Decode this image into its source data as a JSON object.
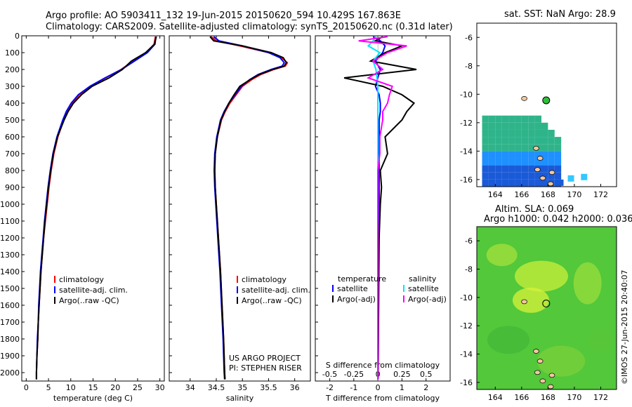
{
  "header": {
    "line1": "Argo profile: AO 5903411_132 19-Jun-2015 20150620_594 10.429S 167.863E",
    "line2": "Climatology: CARS2009. Satellite-adjusted climatology: synTS_20150620.nc (0.31d later)"
  },
  "credits": {
    "project": "US ARGO PROJECT",
    "pi": "PI: STEPHEN RISER",
    "watermark": "©IMOS 27-Jun-2015 20:40:07"
  },
  "colors": {
    "climatology": "#ff0000",
    "satellite": "#0000ff",
    "argo": "#000000",
    "sat_salinity": "#00e5ff",
    "argo_salinity": "#ff00ff"
  },
  "legend_profile": [
    "climatology",
    "satellite-adj. clim.",
    "Argo(..raw -QC)"
  ],
  "legend_diff": {
    "temp_title": "temperature",
    "sal_title": "salinity",
    "temp_items": [
      "satellite",
      "Argo(-adj)"
    ],
    "sal_items": [
      "satellite",
      "Argo(-adj)"
    ]
  },
  "chart_data": [
    {
      "type": "line",
      "id": "temperature",
      "xlabel": "temperature (deg C)",
      "ylim": [
        2050,
        0
      ],
      "xlim": [
        -1,
        31
      ],
      "xticks": [
        0,
        5,
        10,
        15,
        20,
        25,
        30
      ],
      "yticks": [
        0,
        100,
        200,
        300,
        400,
        500,
        600,
        700,
        800,
        900,
        1000,
        1100,
        1200,
        1300,
        1400,
        1500,
        1600,
        1700,
        1800,
        1900,
        2000
      ],
      "depth": [
        5,
        50,
        100,
        150,
        200,
        250,
        300,
        350,
        400,
        450,
        500,
        600,
        700,
        800,
        900,
        1000,
        1100,
        1200,
        1300,
        1400,
        1500,
        1600,
        1700,
        1800,
        1900,
        2000,
        2040
      ],
      "series": [
        {
          "name": "climatology",
          "color": "#ff0000",
          "values": [
            29,
            28.7,
            27,
            24,
            21.3,
            17.8,
            14.4,
            11.9,
            10.3,
            9.2,
            8.4,
            7.1,
            6.2,
            5.6,
            5.1,
            4.7,
            4.3,
            3.9,
            3.6,
            3.3,
            3.1,
            2.9,
            2.7,
            2.6,
            2.4,
            2.3,
            2.3
          ]
        },
        {
          "name": "satellite-adj. clim.",
          "color": "#0000ff",
          "values": [
            29.1,
            28.9,
            27.2,
            24.3,
            21.4,
            17.7,
            14.3,
            11.7,
            10.1,
            9.0,
            8.2,
            6.9,
            6.0,
            5.4,
            4.9,
            4.5,
            4.1,
            3.8,
            3.5,
            3.2,
            3.0,
            2.8,
            2.7,
            2.5,
            2.4,
            2.3,
            2.3
          ]
        },
        {
          "name": "Argo(..raw -QC)",
          "color": "#000000",
          "values": [
            29.2,
            28.8,
            26.8,
            23.6,
            21.6,
            18.6,
            14.8,
            12.4,
            10.6,
            9.4,
            8.5,
            7.0,
            6.1,
            5.5,
            5.0,
            4.6,
            4.2,
            3.9,
            3.6,
            3.3,
            3.1,
            2.9,
            2.7,
            2.6,
            2.4,
            2.3,
            2.3
          ]
        }
      ]
    },
    {
      "type": "line",
      "id": "salinity",
      "xlabel": "salinity",
      "ylim": [
        2050,
        0
      ],
      "xlim": [
        33.6,
        36.3
      ],
      "xticks": [
        34,
        34.5,
        35,
        35.5,
        36
      ],
      "depth": [
        5,
        30,
        60,
        100,
        130,
        160,
        180,
        200,
        230,
        260,
        300,
        350,
        400,
        450,
        500,
        600,
        700,
        800,
        900,
        1000,
        1200,
        1400,
        1600,
        1800,
        2000,
        2040
      ],
      "series": [
        {
          "name": "climatology",
          "color": "#ff0000",
          "values": [
            34.4,
            34.5,
            34.95,
            35.5,
            35.75,
            35.86,
            35.82,
            35.6,
            35.35,
            35.18,
            35.0,
            34.88,
            34.76,
            34.67,
            34.6,
            34.52,
            34.48,
            34.47,
            34.48,
            34.5,
            34.54,
            34.58,
            34.61,
            34.64,
            34.66,
            34.67
          ]
        },
        {
          "name": "satellite-adj. clim.",
          "color": "#0000ff",
          "values": [
            34.45,
            34.55,
            35.0,
            35.5,
            35.72,
            35.8,
            35.76,
            35.55,
            35.3,
            35.14,
            34.98,
            34.86,
            34.74,
            34.65,
            34.58,
            34.51,
            34.47,
            34.46,
            34.47,
            34.49,
            34.53,
            34.57,
            34.6,
            34.63,
            34.65,
            34.66
          ]
        },
        {
          "name": "Argo(..raw -QC)",
          "color": "#000000",
          "values": [
            34.38,
            34.45,
            35.0,
            35.55,
            35.78,
            35.84,
            35.8,
            35.58,
            35.32,
            35.15,
            34.95,
            34.84,
            34.74,
            34.66,
            34.59,
            34.52,
            34.48,
            34.47,
            34.48,
            34.5,
            34.54,
            34.58,
            34.61,
            34.64,
            34.66,
            34.66
          ]
        }
      ]
    },
    {
      "type": "line",
      "id": "difference",
      "xlabel": "T difference from climatology",
      "xlabel_top": "S difference from climatology",
      "ylim": [
        2050,
        0
      ],
      "xlim": [
        -2.6,
        3.0
      ],
      "xticks": [
        -2,
        -1,
        0,
        1,
        2
      ],
      "xticks_top": [
        -0.5,
        -0.25,
        0,
        0.25,
        0.5
      ],
      "depth": [
        5,
        30,
        60,
        100,
        150,
        200,
        250,
        300,
        350,
        400,
        450,
        500,
        600,
        700,
        800,
        900,
        1000,
        1200,
        1400,
        1600,
        1800,
        2000,
        2040
      ],
      "series": [
        {
          "name": "T satellite",
          "color": "#0000ff",
          "values": [
            -0.2,
            0.1,
            0.3,
            0.2,
            -0.1,
            0.1,
            0.0,
            -0.1,
            0.05,
            0.1,
            0.1,
            0.05,
            0.05,
            0.05,
            0.05,
            0.05,
            0.05,
            0.03,
            0.03,
            0.02,
            0.02,
            0.01,
            0.01
          ]
        },
        {
          "name": "T Argo(-adj)",
          "color": "#000000",
          "values": [
            0.2,
            -0.1,
            1.0,
            0.3,
            -0.3,
            1.6,
            -1.4,
            0.2,
            1.0,
            1.5,
            1.2,
            1.0,
            0.3,
            0.4,
            0.1,
            0.15,
            0.1,
            0.05,
            0.04,
            0.03,
            0.02,
            0.01,
            0.0
          ]
        },
        {
          "name": "S satellite",
          "color": "#00e5ff",
          "values": [
            -0.02,
            -0.05,
            -0.1,
            0.02,
            -0.05,
            -0.02,
            -0.01,
            0.0,
            0.0,
            0.0,
            0.0,
            0.0,
            0.0,
            0.0,
            0.0,
            0.0,
            0.0,
            0.0,
            0.0,
            0.0,
            0.0,
            0.0,
            0.0
          ]
        },
        {
          "name": "S Argo(-adj)",
          "color": "#ff00ff",
          "values": [
            0.1,
            -0.2,
            0.3,
            0.1,
            -0.05,
            0.05,
            -0.1,
            0.15,
            0.12,
            0.1,
            0.05,
            0.05,
            0.02,
            0.02,
            0.0,
            0.0,
            0.0,
            0.0,
            0.0,
            0.0,
            0.0,
            0.0,
            0.0
          ]
        }
      ]
    },
    {
      "type": "heatmap",
      "id": "sst_map",
      "title": "sat. SST: NaN Argo: 28.9",
      "xlim": [
        162.6,
        173.2
      ],
      "ylim": [
        -16.5,
        -5
      ],
      "xticks": [
        164,
        166,
        168,
        170,
        172
      ],
      "yticks": [
        -6,
        -8,
        -10,
        -12,
        -14,
        -16
      ],
      "argo_position": {
        "lon": 167.863,
        "lat": -10.429
      }
    },
    {
      "type": "heatmap",
      "id": "sla_map",
      "title": "Altim. SLA: 0.069",
      "subtitle": "Argo h1000: 0.042 h2000: 0.036",
      "xlim": [
        162.6,
        173.2
      ],
      "ylim": [
        -16.5,
        -5
      ],
      "xticks": [
        164,
        166,
        168,
        170,
        172
      ],
      "yticks": [
        -6,
        -8,
        -10,
        -12,
        -14,
        -16
      ],
      "argo_position": {
        "lon": 167.863,
        "lat": -10.429
      }
    }
  ]
}
